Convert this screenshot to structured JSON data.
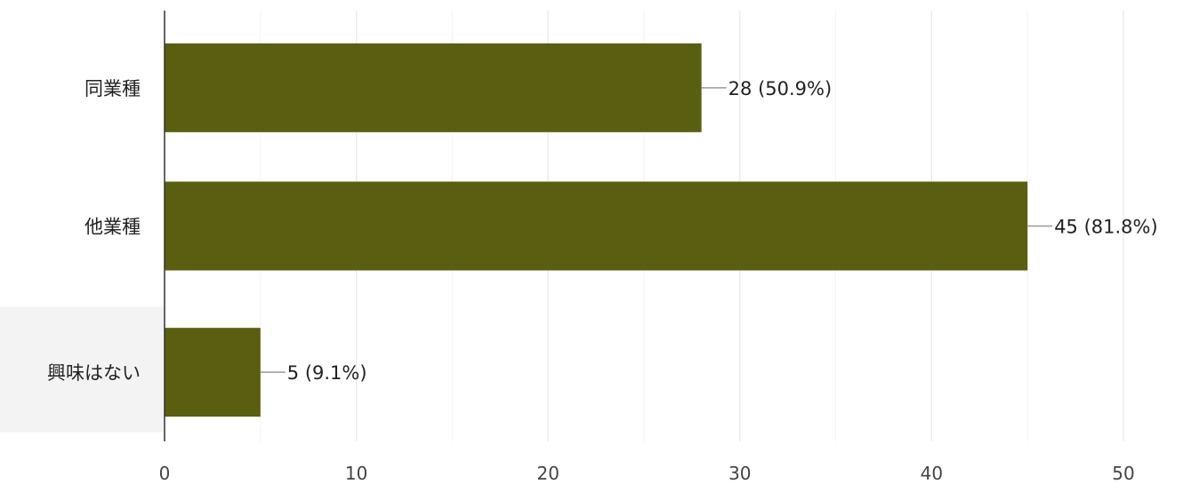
{
  "chart_data": {
    "type": "bar",
    "orientation": "horizontal",
    "categories": [
      "同業種",
      "他業種",
      "興味はない"
    ],
    "values": [
      28,
      45,
      5
    ],
    "data_labels": [
      "28 (50.9%)",
      "45 (81.8%)",
      "5 (9.1%)"
    ],
    "x_ticks": [
      0,
      10,
      20,
      30,
      40,
      50
    ],
    "xlim": [
      0,
      50
    ],
    "minor_grid_step": 5,
    "grid": true,
    "title": "",
    "xlabel": "",
    "ylabel": "",
    "bar_color": "#5a5e10",
    "legend": "none"
  }
}
